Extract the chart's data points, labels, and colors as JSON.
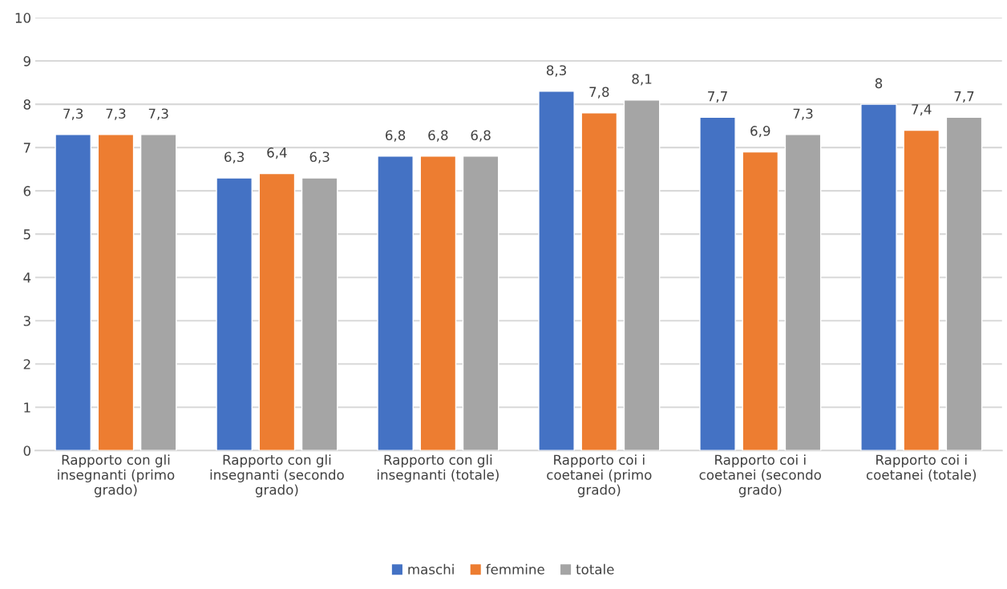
{
  "chart_data": {
    "type": "bar",
    "categories": [
      "Rapporto con gli insegnanti (primo grado)",
      "Rapporto con gli insegnanti (secondo grado)",
      "Rapporto con gli insegnanti (totale)",
      "Rapporto coi i coetanei (primo grado)",
      "Rapporto coi i coetanei (secondo grado)",
      "Rapporto coi i coetanei (totale)"
    ],
    "series": [
      {
        "name": "maschi",
        "color": "#4472c4",
        "values": [
          7.3,
          6.3,
          6.8,
          8.3,
          7.7,
          8
        ],
        "value_labels": [
          "7,3",
          "6,3",
          "6,8",
          "8,3",
          "7,7",
          "8"
        ]
      },
      {
        "name": "femmine",
        "color": "#ed7d31",
        "values": [
          7.3,
          6.4,
          6.8,
          7.8,
          6.9,
          7.4
        ],
        "value_labels": [
          "7,3",
          "6,4",
          "6,8",
          "7,8",
          "6,9",
          "7,4"
        ]
      },
      {
        "name": "totale",
        "color": "#a5a5a5",
        "values": [
          7.3,
          6.3,
          6.8,
          8.1,
          7.3,
          7.7
        ],
        "value_labels": [
          "7,3",
          "6,3",
          "6,8",
          "8,1",
          "7,3",
          "7,7"
        ]
      }
    ],
    "ylim": [
      0,
      10
    ],
    "yticks": [
      0,
      1,
      2,
      3,
      4,
      5,
      6,
      7,
      8,
      9,
      10
    ],
    "grid": "y",
    "legend": "bottom"
  }
}
